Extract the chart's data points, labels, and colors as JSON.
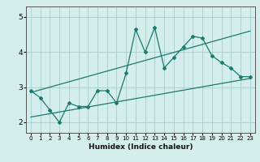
{
  "bg_color": "#d4eeee",
  "line_color": "#1a7a6e",
  "grid_color": "#aacccc",
  "xlabel": "Humidex (Indice chaleur)",
  "ylabel": "",
  "xlim": [
    -0.5,
    23.5
  ],
  "ylim": [
    1.7,
    5.3
  ],
  "yticks": [
    2,
    3,
    4,
    5
  ],
  "xticks": [
    0,
    1,
    2,
    3,
    4,
    5,
    6,
    7,
    8,
    9,
    10,
    11,
    12,
    13,
    14,
    15,
    16,
    17,
    18,
    19,
    20,
    21,
    22,
    23
  ],
  "zigzag_x": [
    0,
    1,
    2,
    3,
    4,
    5,
    6,
    7,
    8,
    9,
    10,
    11,
    12,
    13,
    14,
    15,
    16,
    17,
    18,
    19,
    20,
    21,
    22,
    23
  ],
  "zigzag_y": [
    2.9,
    2.7,
    2.35,
    2.0,
    2.55,
    2.45,
    2.45,
    2.9,
    2.9,
    2.55,
    3.4,
    4.65,
    4.0,
    4.7,
    3.55,
    3.85,
    4.15,
    4.45,
    4.4,
    3.9,
    3.7,
    3.55,
    3.3,
    3.3
  ],
  "line1_x": [
    0,
    23
  ],
  "line1_y": [
    2.15,
    3.25
  ],
  "line2_x": [
    0,
    23
  ],
  "line2_y": [
    2.85,
    4.6
  ]
}
